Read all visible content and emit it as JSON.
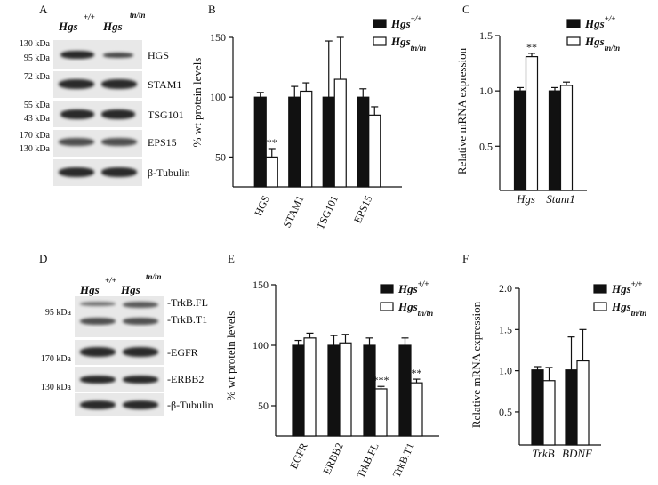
{
  "panels": {
    "A": {
      "letter": "A",
      "genotype_wt": "Hgs",
      "genotype_wt_sup": "+/+",
      "genotype_mut": "Hgs",
      "genotype_mut_sup": "tn/tn",
      "kda": [
        "130 kDa",
        "95 kDa",
        "72 kDa",
        "55 kDa",
        "43 kDa",
        "170 kDa",
        "130 kDa"
      ],
      "bands": [
        "HGS",
        "STAM1",
        "TSG101",
        "EPS15",
        "β-Tubulin"
      ]
    },
    "B": {
      "letter": "B"
    },
    "C": {
      "letter": "C"
    },
    "D": {
      "letter": "D",
      "genotype_wt": "Hgs",
      "genotype_wt_sup": "+/+",
      "genotype_mut": "Hgs",
      "genotype_mut_sup": "tn/tn",
      "kda": [
        "95 kDa",
        "170 kDa",
        "130 kDa"
      ],
      "bands": [
        "-TrkB.FL",
        "-TrkB.T1",
        "-EGFR",
        "-ERBB2",
        "-β-Tubulin"
      ]
    },
    "E": {
      "letter": "E"
    },
    "F": {
      "letter": "F"
    }
  },
  "chart_data": [
    {
      "panel": "B",
      "type": "bar",
      "categories": [
        "HGS",
        "STAM1",
        "TSG101",
        "EPS15"
      ],
      "series": [
        {
          "name": "Hgs +/+",
          "color": "#111111",
          "values": [
            100,
            100,
            100,
            100
          ],
          "err": [
            4,
            9,
            47,
            7
          ]
        },
        {
          "name": "Hgs tn/tn",
          "color": "#ffffff",
          "values": [
            50,
            105,
            115,
            85
          ],
          "err": [
            7,
            7,
            35,
            7
          ]
        }
      ],
      "legend": [
        "Hgs +/+",
        "Hgs tn/tn"
      ],
      "ylabel": "% wt protein levels",
      "ylim": [
        25,
        150
      ],
      "yticks": [
        50,
        100,
        150
      ],
      "annotations": [
        {
          "category": "HGS",
          "series": 1,
          "text": "**"
        }
      ]
    },
    {
      "panel": "C",
      "type": "bar",
      "categories": [
        "Hgs",
        "Stam1"
      ],
      "series": [
        {
          "name": "Hgs +/+",
          "color": "#111111",
          "values": [
            1.0,
            1.0
          ],
          "err": [
            0.03,
            0.03
          ]
        },
        {
          "name": "Hgs tn/tn",
          "color": "#ffffff",
          "values": [
            1.31,
            1.05
          ],
          "err": [
            0.03,
            0.03
          ]
        }
      ],
      "legend": [
        "Hgs +/+",
        "Hgs tn/tn"
      ],
      "ylabel": "Relative mRNA expression",
      "ylim": [
        0.1,
        1.5
      ],
      "yticks": [
        0.5,
        1.0,
        1.5
      ],
      "annotations": [
        {
          "category": "Hgs",
          "series": 1,
          "text": "**"
        }
      ]
    },
    {
      "panel": "E",
      "type": "bar",
      "categories": [
        "EGFR",
        "ERBB2",
        "TrkB.FL",
        "TrkB.T1"
      ],
      "series": [
        {
          "name": "Hgs +/+",
          "color": "#111111",
          "values": [
            100,
            100,
            100,
            100
          ],
          "err": [
            4,
            8,
            6,
            6
          ]
        },
        {
          "name": "Hgs tn/tn",
          "color": "#ffffff",
          "values": [
            106,
            102,
            64,
            69
          ],
          "err": [
            4,
            7,
            2,
            3
          ]
        }
      ],
      "legend": [
        "Hgs +/+",
        "Hgs tn/tn"
      ],
      "ylabel": "% wt protein levels",
      "ylim": [
        25,
        150
      ],
      "yticks": [
        50,
        100,
        150
      ],
      "annotations": [
        {
          "category": "TrkB.FL",
          "series": 1,
          "text": "***"
        },
        {
          "category": "TrkB.T1",
          "series": 1,
          "text": "**"
        }
      ]
    },
    {
      "panel": "F",
      "type": "bar",
      "categories": [
        "TrkB",
        "BDNF"
      ],
      "series": [
        {
          "name": "Hgs +/+",
          "color": "#111111",
          "values": [
            1.01,
            1.01
          ],
          "err": [
            0.04,
            0.4
          ]
        },
        {
          "name": "Hgs tn/tn",
          "color": "#ffffff",
          "values": [
            0.88,
            1.12
          ],
          "err": [
            0.16,
            0.38
          ]
        }
      ],
      "legend": [
        "Hgs +/+",
        "Hgs tn/tn"
      ],
      "ylabel": "Relative mRNA expression",
      "ylim": [
        0.1,
        2.0
      ],
      "yticks": [
        0.5,
        1.0,
        1.5,
        2.0
      ],
      "annotations": []
    }
  ]
}
